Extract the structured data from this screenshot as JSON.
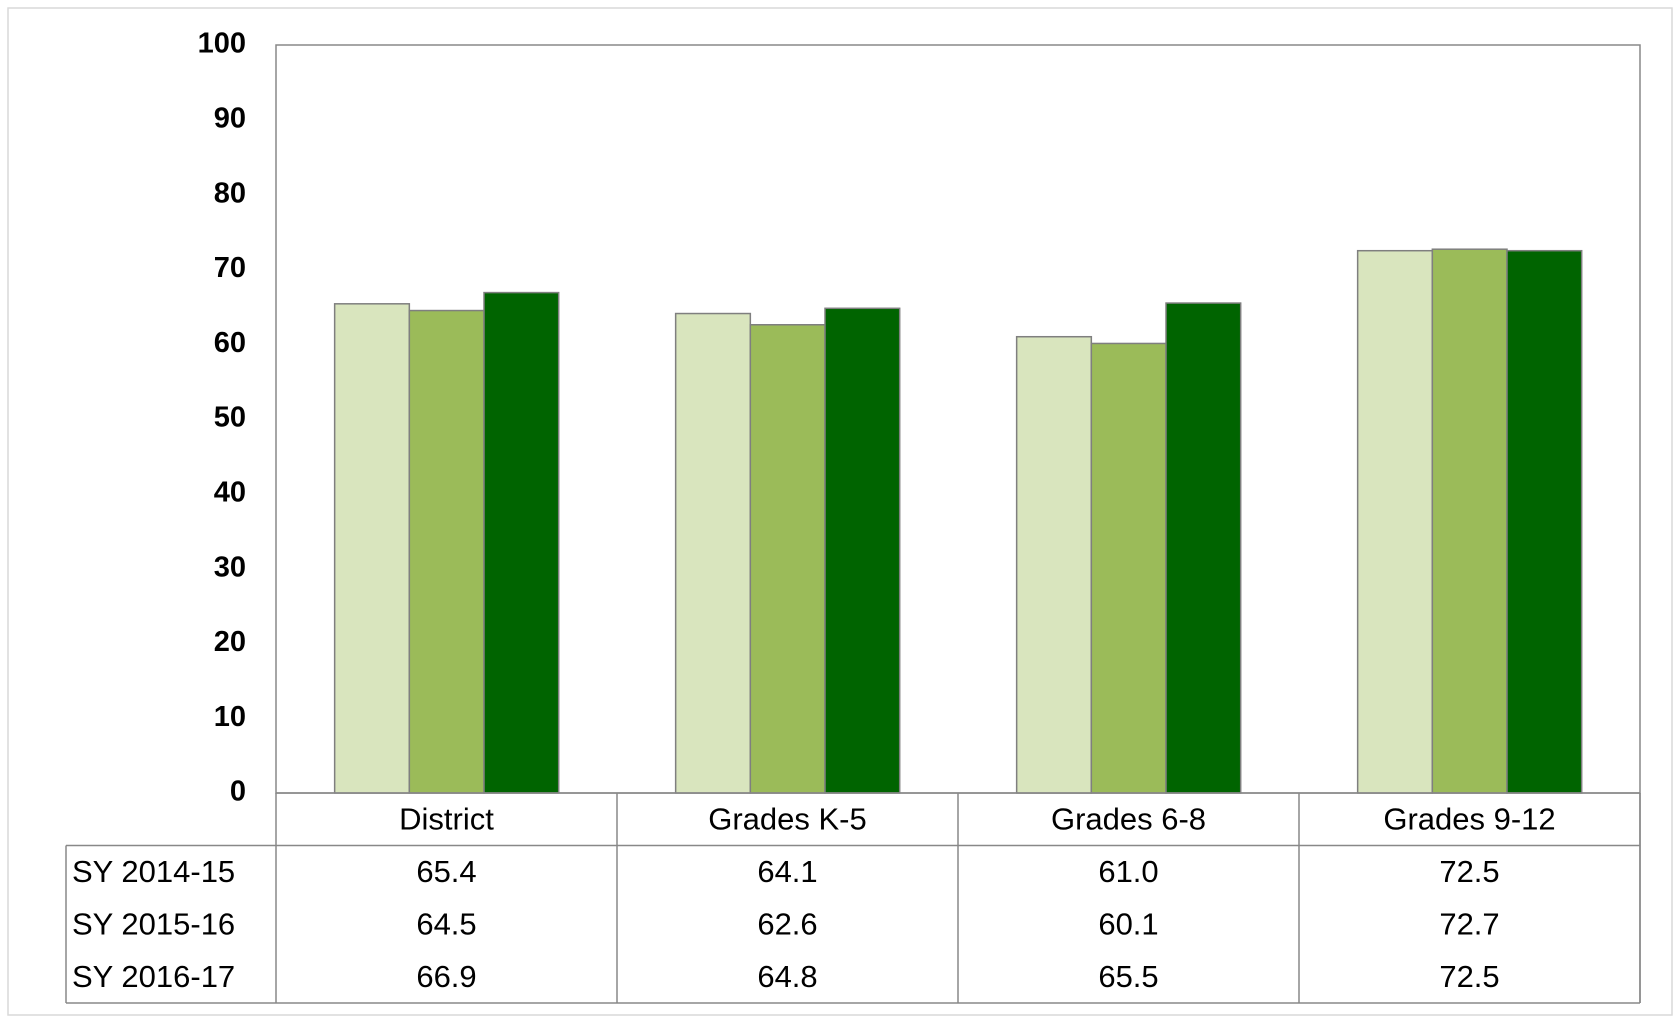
{
  "chart_data": {
    "type": "bar",
    "categories": [
      "District",
      "Grades K-5",
      "Grades 6-8",
      "Grades 9-12"
    ],
    "series": [
      {
        "name": "SY 2014-15",
        "color": "#d9e5be",
        "values": [
          65.4,
          64.1,
          61.0,
          72.5
        ],
        "value_labels": [
          "65.4",
          "64.1",
          "61.0",
          "72.5"
        ]
      },
      {
        "name": "SY 2015-16",
        "color": "#9bbb59",
        "values": [
          64.5,
          62.6,
          60.1,
          72.7
        ]
      },
      {
        "name": "SY 2016-17",
        "color": "#006400",
        "values": [
          66.9,
          64.8,
          65.5,
          72.5
        ]
      }
    ],
    "ylim": [
      0,
      100
    ],
    "yticks": [
      0,
      10,
      20,
      30,
      40,
      50,
      60,
      70,
      80,
      90,
      100
    ],
    "grid": false
  }
}
